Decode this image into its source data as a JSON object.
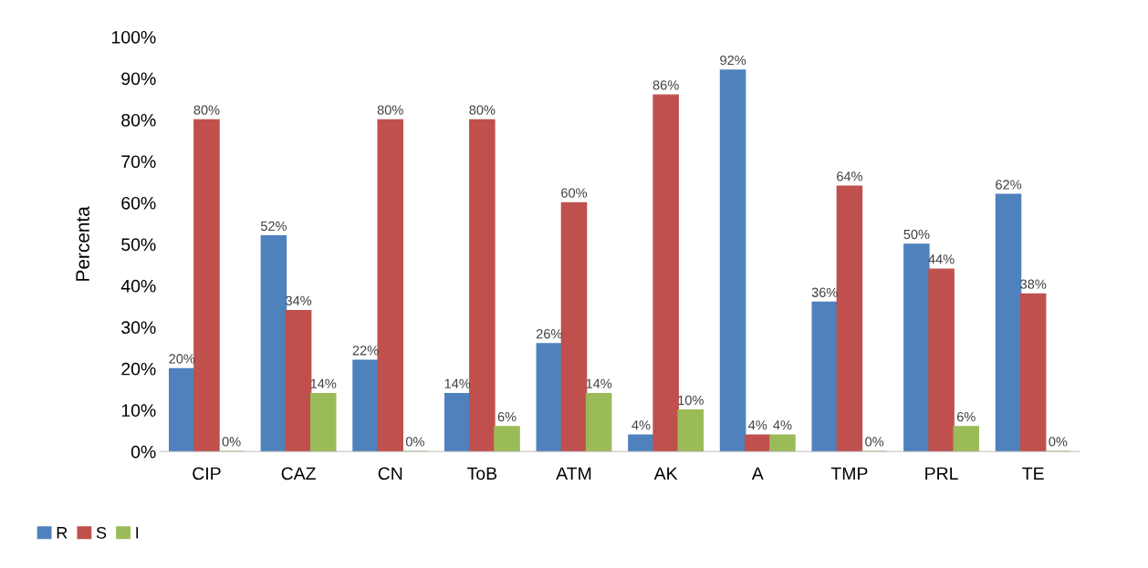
{
  "chart_data": {
    "type": "bar",
    "ylabel": "Percenta",
    "categories": [
      "CIP",
      "CAZ",
      "CN",
      "ToB",
      "ATM",
      "AK",
      "A",
      "TMP",
      "PRL",
      "TE"
    ],
    "series": [
      {
        "name": "R",
        "color": "#4f81bd",
        "values": [
          20,
          52,
          22,
          14,
          26,
          4,
          92,
          36,
          50,
          62
        ],
        "value_labels": [
          "20%",
          "52%",
          "22%",
          "14%",
          "26%",
          "4%",
          "92%",
          "36%",
          "50%",
          "62%"
        ]
      },
      {
        "name": "S",
        "color": "#c0504d",
        "values": [
          80,
          34,
          80,
          80,
          60,
          86,
          4,
          64,
          44,
          38
        ],
        "value_labels": [
          "80%",
          "34%",
          "80%",
          "80%",
          "60%",
          "86%",
          "4%",
          "64%",
          "44%",
          "38%"
        ]
      },
      {
        "name": "I",
        "color": "#9bbb59",
        "values": [
          0,
          14,
          0,
          6,
          14,
          10,
          4,
          0,
          6,
          0
        ],
        "value_labels": [
          "0%",
          "14%",
          "0%",
          "6%",
          "14%",
          "10%",
          "4%",
          "0%",
          "6%",
          "0%"
        ]
      }
    ],
    "ylim": [
      0,
      100
    ],
    "yticks": [
      {
        "value": 0,
        "label": "0%"
      },
      {
        "value": 10,
        "label": "10%"
      },
      {
        "value": 20,
        "label": "20%"
      },
      {
        "value": 30,
        "label": "30%"
      },
      {
        "value": 40,
        "label": "40%"
      },
      {
        "value": 50,
        "label": "50%"
      },
      {
        "value": 60,
        "label": "60%"
      },
      {
        "value": 70,
        "label": "70%"
      },
      {
        "value": 80,
        "label": "80%"
      },
      {
        "value": 90,
        "label": "90%"
      },
      {
        "value": 100,
        "label": "100%"
      }
    ],
    "grid": false,
    "legend": "bottom left"
  }
}
